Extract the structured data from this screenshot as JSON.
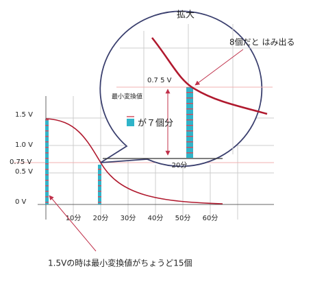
{
  "header": {
    "title": "拡大"
  },
  "zoom": {
    "overflow_note": "8個だと はみ出る",
    "level_label": "0.7 5 V",
    "unit_label": "最小変換値",
    "count_note": "が７個分",
    "time_label": "20分"
  },
  "axes": {
    "y_labels": [
      "1.5 V",
      "1.0 V",
      "0.75 V",
      "0.5 V",
      "0 V"
    ],
    "x_labels": [
      "10分",
      "20分",
      "30分",
      "40分",
      "50分",
      "60分"
    ]
  },
  "caption": "1.5Vの時は最小変換値がちょうど15個"
}
